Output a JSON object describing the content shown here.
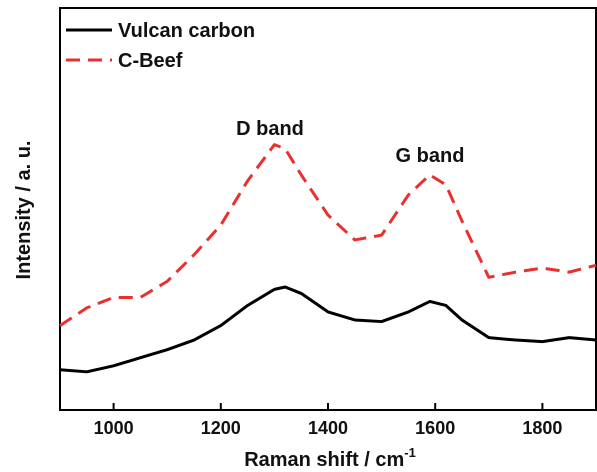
{
  "chart_data": {
    "type": "line",
    "x_label": "Raman shift / cm",
    "x_label_superscript": "-1",
    "y_label": "Intensity / a. u.",
    "annotations": [
      "D band",
      "G band"
    ],
    "xlim": [
      900,
      1900
    ],
    "xticks": [
      1000,
      1200,
      1400,
      1600,
      1800
    ],
    "ylim": [
      0,
      100
    ],
    "legend": "top-left",
    "x": [
      900,
      950,
      1000,
      1050,
      1100,
      1150,
      1200,
      1250,
      1300,
      1320,
      1350,
      1400,
      1450,
      1500,
      1550,
      1590,
      1620,
      1650,
      1700,
      1750,
      1800,
      1850,
      1900
    ],
    "series": [
      {
        "name": "Vulcan carbon",
        "color": "#000000",
        "dash": false,
        "values": [
          10,
          9.5,
          11,
          13,
          15,
          17.4,
          21,
          26,
          30,
          30.6,
          29,
          24.4,
          22.4,
          22,
          24.4,
          27,
          26,
          22.4,
          18,
          17.4,
          17,
          18,
          17.4
        ]
      },
      {
        "name": "C-Beef",
        "color": "#e8312f",
        "dash": true,
        "values": [
          21,
          25.4,
          28,
          28,
          32,
          38.6,
          46,
          57,
          66,
          65,
          58.5,
          48.5,
          42.3,
          43.5,
          53.5,
          58.5,
          56,
          47,
          33,
          34.3,
          35.3,
          34.3,
          36
        ]
      }
    ]
  }
}
